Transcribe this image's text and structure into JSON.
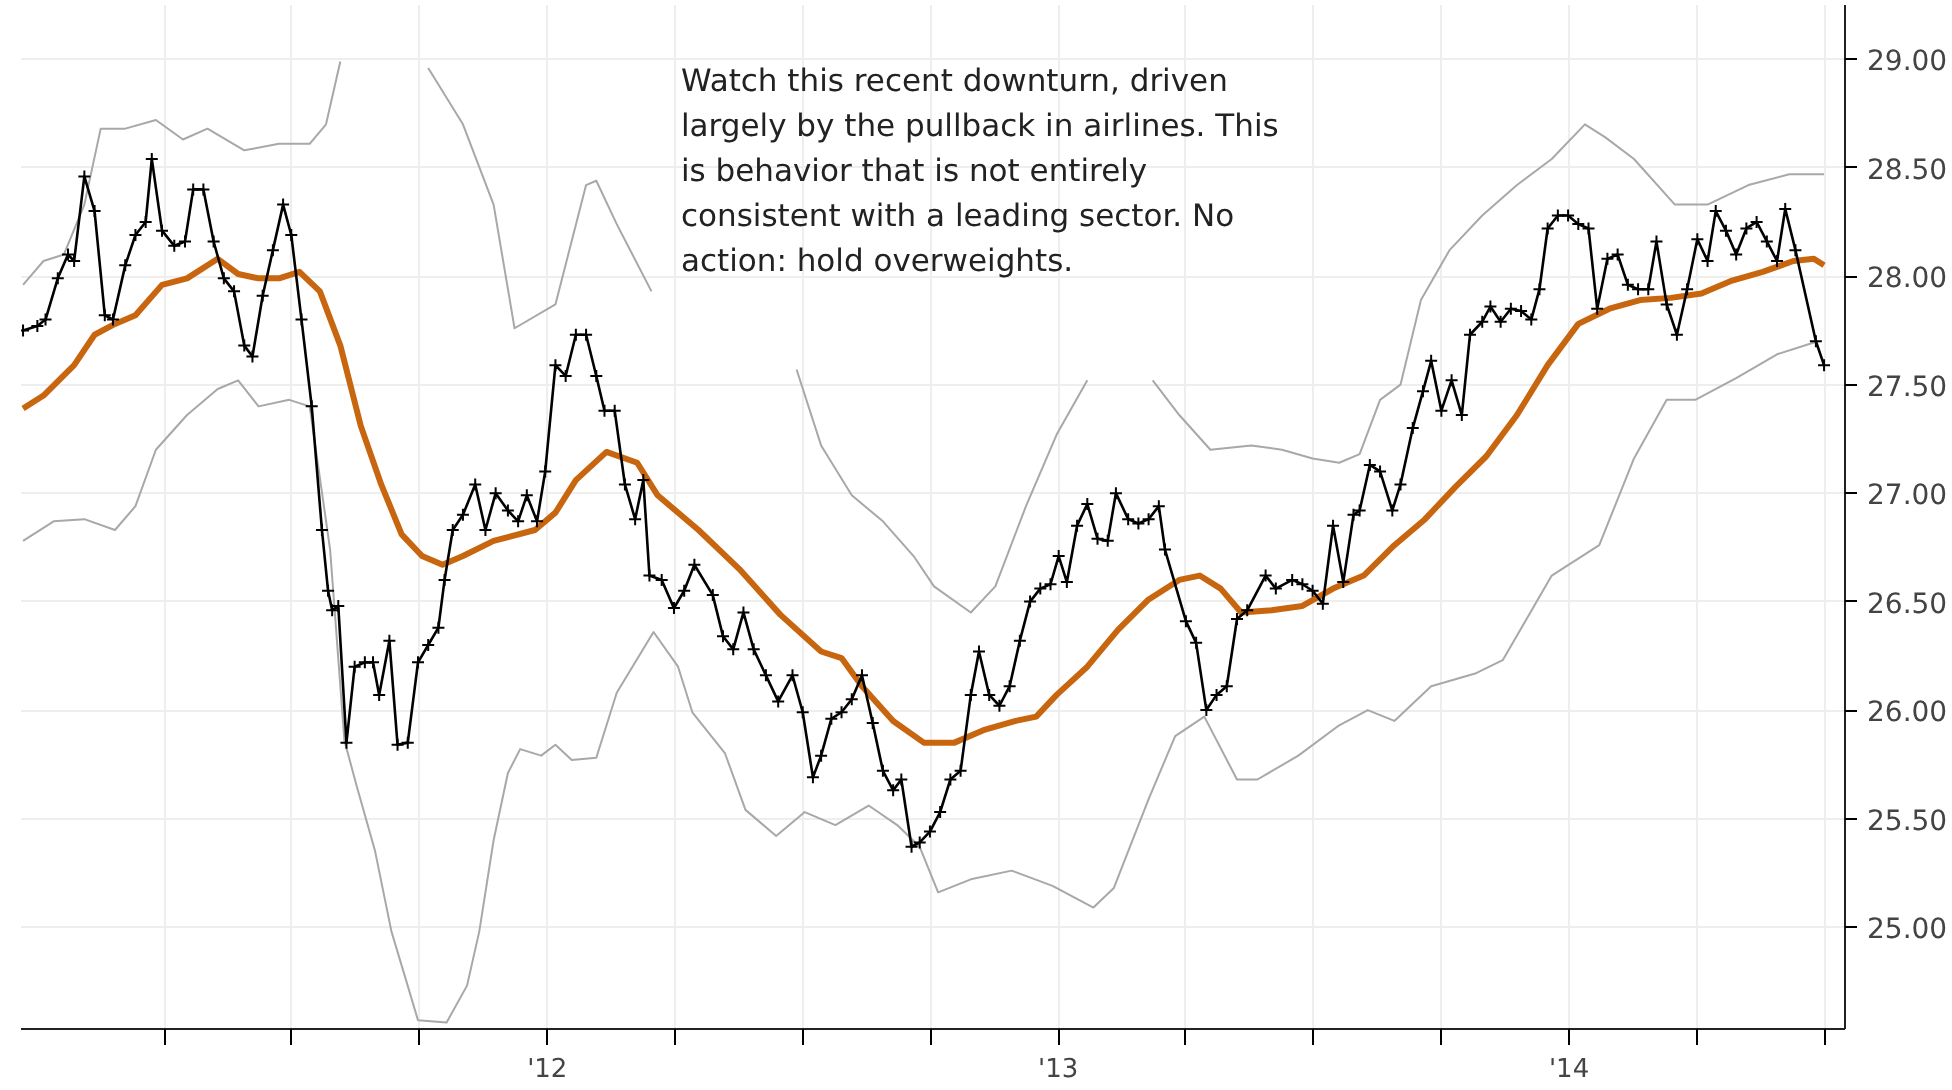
{
  "chart_data": {
    "type": "line",
    "annotations": [
      "Watch this recent downturn, driven\nlargely by the pullback in airlines. This\nis behavior that is not entirely\nconsistent with a leading sector. No\naction: hold overweights."
    ],
    "xlim": [
      2010.97,
      2014.54
    ],
    "ylim": [
      24.53,
      29.25
    ],
    "xticks": [
      {
        "value": 2011.25,
        "label": null
      },
      {
        "value": 2011.5,
        "label": null
      },
      {
        "value": 2011.75,
        "label": null
      },
      {
        "value": 2012,
        "label": "'12"
      },
      {
        "value": 2012.25,
        "label": null
      },
      {
        "value": 2012.5,
        "label": null
      },
      {
        "value": 2012.75,
        "label": null
      },
      {
        "value": 2013,
        "label": "'13"
      },
      {
        "value": 2013.25,
        "label": null
      },
      {
        "value": 2013.5,
        "label": null
      },
      {
        "value": 2013.75,
        "label": null
      },
      {
        "value": 2014,
        "label": "'14"
      },
      {
        "value": 2014.25,
        "label": null
      },
      {
        "value": 2014.5,
        "label": null
      }
    ],
    "yticks": [
      {
        "value": 25,
        "label": "25.00"
      },
      {
        "value": 25.5,
        "label": "25.50"
      },
      {
        "value": 26,
        "label": "26.00"
      },
      {
        "value": 26.5,
        "label": "26.50"
      },
      {
        "value": 27,
        "label": "27.00"
      },
      {
        "value": 27.5,
        "label": "27.50"
      },
      {
        "value": 28,
        "label": "28.00"
      },
      {
        "value": 28.5,
        "label": "28.50"
      },
      {
        "value": 29,
        "label": "29.00"
      }
    ],
    "grid": true,
    "series": [
      {
        "color": "#a8a8a8",
        "x": [
          2010.974,
          2011.014,
          2011.054,
          2011.094,
          2011.126,
          2011.174,
          2011.234,
          2011.287,
          2011.335,
          2011.407,
          2011.475,
          2011.535,
          2011.567,
          2011.595,
          2011.6,
          2011.767,
          2011.835,
          2011.895,
          2011.936,
          2012.016,
          2012.076,
          2012.096,
          2012.136,
          2012.204,
          2012.3,
          2012.488,
          2012.536,
          2012.596,
          2012.657,
          2012.717,
          2012.757,
          2012.829,
          2012.877,
          2012.937,
          2012.997,
          2013.057,
          2013.1,
          2013.185,
          2013.237,
          2013.298,
          2013.378,
          2013.438,
          2013.498,
          2013.55,
          2013.59,
          2013.63,
          2013.67,
          2013.71,
          2013.766,
          2013.83,
          2013.898,
          2013.966,
          2014.031,
          2014.071,
          2014.127,
          2014.207,
          2014.271,
          2014.351,
          2014.431,
          2014.499
        ],
        "values": [
          27.96,
          28.07,
          28.1,
          28.33,
          28.68,
          28.68,
          28.72,
          28.63,
          28.68,
          28.58,
          28.61,
          28.61,
          28.7,
          28.99,
          null,
          28.96,
          28.7,
          28.33,
          27.76,
          27.87,
          28.42,
          28.44,
          28.24,
          27.93,
          null,
          27.57,
          27.22,
          26.99,
          26.87,
          26.71,
          26.57,
          26.45,
          26.57,
          26.94,
          27.27,
          27.52,
          null,
          27.52,
          27.36,
          27.2,
          27.22,
          27.2,
          27.16,
          27.14,
          27.18,
          27.43,
          27.5,
          27.89,
          28.12,
          28.28,
          28.42,
          28.54,
          28.7,
          28.64,
          28.54,
          28.33,
          28.33,
          28.42,
          28.47,
          28.47
        ]
      },
      {
        "color": "#a8a8a8",
        "x": [
          2010.974,
          2011.034,
          2011.094,
          2011.154,
          2011.194,
          2011.234,
          2011.295,
          2011.355,
          2011.395,
          2011.435,
          2011.495,
          2011.535,
          2011.575,
          2011.603,
          2011.627,
          2011.663,
          2011.695,
          2011.723,
          2011.747,
          2011.803,
          2011.843,
          2011.867,
          2011.895,
          2011.923,
          2011.947,
          2011.988,
          2012.016,
          2012.048,
          2012.096,
          2012.136,
          2012.208,
          2012.256,
          2012.284,
          2012.348,
          2012.388,
          2012.448,
          2012.504,
          2012.564,
          2012.629,
          2012.685,
          2012.729,
          2012.765,
          2012.829,
          2012.909,
          2012.989,
          2013.069,
          2013.109,
          2013.177,
          2013.229,
          2013.286,
          2013.35,
          2013.39,
          2013.47,
          2013.55,
          2013.606,
          2013.658,
          2013.73,
          2013.818,
          2013.87,
          2013.966,
          2014.059,
          2014.127,
          2014.191,
          2014.247,
          2014.327,
          2014.407,
          2014.487
        ],
        "values": [
          26.78,
          26.87,
          26.88,
          26.83,
          26.94,
          27.2,
          27.36,
          27.48,
          27.52,
          27.4,
          27.43,
          27.4,
          26.74,
          25.86,
          25.65,
          25.35,
          24.98,
          24.76,
          24.57,
          24.56,
          24.73,
          24.98,
          25.4,
          25.71,
          25.82,
          25.79,
          25.84,
          25.77,
          25.78,
          26.08,
          26.36,
          26.2,
          25.99,
          25.8,
          25.54,
          25.42,
          25.53,
          25.47,
          25.56,
          25.47,
          25.37,
          25.16,
          25.22,
          25.26,
          25.19,
          25.09,
          25.18,
          25.59,
          25.88,
          25.97,
          25.68,
          25.68,
          25.79,
          25.93,
          26.0,
          25.95,
          26.11,
          26.17,
          26.23,
          26.62,
          26.76,
          27.16,
          27.43,
          27.43,
          27.53,
          27.64,
          27.7
        ]
      },
      {
        "color": "#c8650f",
        "x": [
          2010.974,
          2011.014,
          2011.074,
          2011.114,
          2011.154,
          2011.194,
          2011.246,
          2011.295,
          2011.355,
          2011.395,
          2011.435,
          2011.475,
          2011.515,
          2011.555,
          2011.595,
          2011.635,
          2011.675,
          2011.715,
          2011.755,
          2011.795,
          2011.835,
          2011.895,
          2011.976,
          2012.016,
          2012.056,
          2012.116,
          2012.176,
          2012.216,
          2012.296,
          2012.376,
          2012.456,
          2012.536,
          2012.576,
          2012.616,
          2012.677,
          2012.737,
          2012.797,
          2012.857,
          2012.917,
          2012.957,
          2012.997,
          2013.057,
          2013.117,
          2013.177,
          2013.237,
          2013.277,
          2013.318,
          2013.358,
          2013.418,
          2013.478,
          2013.538,
          2013.598,
          2013.658,
          2013.718,
          2013.778,
          2013.838,
          2013.898,
          2013.958,
          2014.018,
          2014.079,
          2014.139,
          2014.199,
          2014.259,
          2014.319,
          2014.379,
          2014.439,
          2014.479,
          2014.499
        ],
        "values": [
          27.39,
          27.45,
          27.59,
          27.73,
          27.78,
          27.82,
          27.96,
          27.99,
          28.08,
          28.01,
          27.99,
          27.99,
          28.02,
          27.93,
          27.68,
          27.31,
          27.04,
          26.81,
          26.71,
          26.67,
          26.71,
          26.78,
          26.83,
          26.91,
          27.06,
          27.19,
          27.14,
          26.99,
          26.83,
          26.65,
          26.44,
          26.27,
          26.24,
          26.11,
          25.95,
          25.85,
          25.85,
          25.91,
          25.95,
          25.97,
          26.07,
          26.2,
          26.37,
          26.51,
          26.6,
          26.62,
          26.56,
          26.45,
          26.46,
          26.48,
          26.56,
          26.62,
          26.76,
          26.88,
          27.03,
          27.17,
          27.36,
          27.59,
          27.78,
          27.85,
          27.89,
          27.9,
          27.92,
          27.98,
          28.02,
          28.07,
          28.08,
          28.05
        ]
      },
      {
        "color": "#000000",
        "marker": "cross",
        "x": [
          2010.974,
          2011.002,
          2011.018,
          2011.042,
          2011.062,
          2011.074,
          2011.094,
          2011.114,
          2011.134,
          2011.15,
          2011.174,
          2011.194,
          2011.214,
          2011.226,
          2011.246,
          2011.27,
          2011.291,
          2011.307,
          2011.327,
          2011.347,
          2011.367,
          2011.387,
          2011.407,
          2011.423,
          2011.443,
          2011.463,
          2011.483,
          2011.499,
          2011.519,
          2011.539,
          2011.559,
          2011.571,
          2011.579,
          2011.591,
          2011.607,
          2011.623,
          2011.643,
          2011.659,
          2011.671,
          2011.691,
          2011.707,
          2011.727,
          2011.747,
          2011.767,
          2011.787,
          2011.799,
          2011.815,
          2011.835,
          2011.859,
          2011.879,
          2011.899,
          2011.923,
          2011.943,
          2011.96,
          2011.98,
          2011.996,
          2012.016,
          2012.036,
          2012.056,
          2012.076,
          2012.096,
          2012.112,
          2012.132,
          2012.152,
          2012.172,
          2012.188,
          2012.2,
          2012.224,
          2012.248,
          2012.268,
          2012.288,
          2012.324,
          2012.344,
          2012.364,
          2012.384,
          2012.404,
          2012.428,
          2012.452,
          2012.48,
          2012.5,
          2012.52,
          2012.536,
          2012.556,
          2012.576,
          2012.596,
          2012.616,
          2012.637,
          2012.657,
          2012.677,
          2012.693,
          2012.713,
          2012.729,
          2012.749,
          2012.769,
          2012.789,
          2012.809,
          2012.829,
          2012.845,
          2012.865,
          2012.885,
          2012.905,
          2012.925,
          2012.945,
          2012.965,
          2012.985,
          2013.001,
          2013.017,
          2013.037,
          2013.057,
          2013.077,
          2013.097,
          2013.113,
          2013.137,
          2013.157,
          2013.177,
          2013.197,
          2013.209,
          2013.25,
          2013.27,
          2013.29,
          2013.31,
          2013.33,
          2013.35,
          2013.37,
          2013.406,
          2013.426,
          2013.458,
          2013.478,
          2013.498,
          2013.518,
          2013.538,
          2013.558,
          2013.578,
          2013.59,
          2013.61,
          2013.63,
          2013.654,
          2013.67,
          2013.694,
          2013.714,
          2013.73,
          2013.75,
          2013.77,
          2013.79,
          2013.806,
          2013.83,
          2013.846,
          2013.866,
          2013.886,
          2013.906,
          2013.926,
          2013.942,
          2013.958,
          2013.978,
          2013.998,
          2014.018,
          2014.038,
          2014.055,
          2014.075,
          2014.095,
          2014.115,
          2014.135,
          2014.155,
          2014.171,
          2014.191,
          2014.211,
          2014.231,
          2014.251,
          2014.271,
          2014.287,
          2014.307,
          2014.327,
          2014.347,
          2014.367,
          2014.387,
          2014.407,
          2014.423,
          2014.443,
          2014.483,
          2014.499
        ],
        "values": [
          27.75,
          27.77,
          27.8,
          27.99,
          28.1,
          28.07,
          28.46,
          28.3,
          27.82,
          27.8,
          28.05,
          28.19,
          28.25,
          28.54,
          28.21,
          28.14,
          28.16,
          28.4,
          28.4,
          28.16,
          27.99,
          27.93,
          27.68,
          27.63,
          27.91,
          28.12,
          28.33,
          28.19,
          27.8,
          27.4,
          26.83,
          26.55,
          26.46,
          26.48,
          25.85,
          26.2,
          26.22,
          26.22,
          26.07,
          26.32,
          25.84,
          25.85,
          26.22,
          26.3,
          26.38,
          26.6,
          26.83,
          26.9,
          27.04,
          26.83,
          27.0,
          26.92,
          26.87,
          26.99,
          26.87,
          27.1,
          27.59,
          27.54,
          27.73,
          27.73,
          27.54,
          27.38,
          27.38,
          27.04,
          26.88,
          27.06,
          26.62,
          26.6,
          26.47,
          26.55,
          26.67,
          26.53,
          26.34,
          26.28,
          26.45,
          26.28,
          26.16,
          26.04,
          26.16,
          25.99,
          25.69,
          25.79,
          25.96,
          25.99,
          26.05,
          26.16,
          25.94,
          25.72,
          25.63,
          25.68,
          25.37,
          25.39,
          25.44,
          25.53,
          25.68,
          25.72,
          26.07,
          26.27,
          26.07,
          26.02,
          26.11,
          26.32,
          26.5,
          26.56,
          26.58,
          26.71,
          26.59,
          26.85,
          26.95,
          26.79,
          26.78,
          27.0,
          26.88,
          26.86,
          26.88,
          26.94,
          26.74,
          26.41,
          26.31,
          26.0,
          26.07,
          26.11,
          26.42,
          26.46,
          26.62,
          26.56,
          26.6,
          26.58,
          26.55,
          26.49,
          26.85,
          26.59,
          26.9,
          26.92,
          27.13,
          27.1,
          26.92,
          27.04,
          27.3,
          27.47,
          27.61,
          27.38,
          27.52,
          27.36,
          27.73,
          27.79,
          27.86,
          27.79,
          27.85,
          27.84,
          27.8,
          27.94,
          28.22,
          28.28,
          28.28,
          28.24,
          28.22,
          27.85,
          28.08,
          28.1,
          27.96,
          27.94,
          27.94,
          28.16,
          27.87,
          27.73,
          27.94,
          28.17,
          28.07,
          28.3,
          28.21,
          28.1,
          28.22,
          28.25,
          28.16,
          28.07,
          28.31,
          28.12,
          27.7,
          27.59
        ]
      }
    ]
  }
}
